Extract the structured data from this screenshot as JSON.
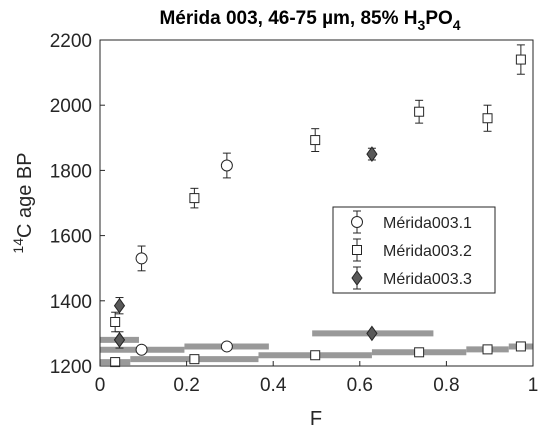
{
  "chart_data": {
    "type": "scatter",
    "title_main": "Mérida 003, 46-75 µm, 85% H",
    "title_sub1": "3",
    "title_mid": "PO",
    "title_sub2": "4",
    "xlabel": "F",
    "ylabel_sup": "14",
    "ylabel_main": "C age BP",
    "xlim": [
      0,
      1
    ],
    "ylim": [
      1200,
      2200
    ],
    "x_ticks": [
      0,
      0.2,
      0.4,
      0.6,
      0.8,
      1
    ],
    "x_tick_labels": [
      "0",
      "0.2",
      "0.4",
      "0.6",
      "0.8",
      "1"
    ],
    "y_ticks": [
      1200,
      1400,
      1600,
      1800,
      2000,
      2200
    ],
    "y_tick_labels": [
      "1200",
      "1400",
      "1600",
      "1800",
      "2000",
      "2200"
    ],
    "legend_position": "right-middle",
    "series": [
      {
        "name": "Mérida003.1",
        "marker": "circle",
        "fill": "#ffffff",
        "points": [
          {
            "x": 0.096,
            "y": 1530,
            "err": 38
          },
          {
            "x": 0.293,
            "y": 1815,
            "err": 38
          }
        ],
        "bars": [
          {
            "x": 0.096,
            "y": 1250,
            "xmin": 0.0,
            "xmax": 0.195
          },
          {
            "x": 0.293,
            "y": 1260,
            "xmin": 0.195,
            "xmax": 0.39
          }
        ]
      },
      {
        "name": "Mérida003.2",
        "marker": "square",
        "fill": "#ffffff",
        "points": [
          {
            "x": 0.035,
            "y": 1335,
            "err": 30
          },
          {
            "x": 0.218,
            "y": 1715,
            "err": 30
          },
          {
            "x": 0.497,
            "y": 1893,
            "err": 35
          },
          {
            "x": 0.737,
            "y": 1980,
            "err": 35
          },
          {
            "x": 0.895,
            "y": 1960,
            "err": 40
          },
          {
            "x": 0.972,
            "y": 2140,
            "err": 45
          }
        ],
        "bars": [
          {
            "x": 0.035,
            "y": 1212,
            "xmin": 0.0,
            "xmax": 0.07
          },
          {
            "x": 0.218,
            "y": 1221,
            "xmin": 0.07,
            "xmax": 0.366
          },
          {
            "x": 0.497,
            "y": 1233,
            "xmin": 0.366,
            "xmax": 0.628
          },
          {
            "x": 0.737,
            "y": 1242,
            "xmin": 0.628,
            "xmax": 0.846
          },
          {
            "x": 0.895,
            "y": 1251,
            "xmin": 0.846,
            "xmax": 0.944
          },
          {
            "x": 0.972,
            "y": 1260,
            "xmin": 0.944,
            "xmax": 1.0
          }
        ]
      },
      {
        "name": "Mérida003.3",
        "marker": "diamond",
        "fill": "#595959",
        "points": [
          {
            "x": 0.045,
            "y": 1385,
            "err": 25
          },
          {
            "x": 0.045,
            "y": 1280,
            "err": 25
          },
          {
            "x": 0.628,
            "y": 1850,
            "err": 18
          }
        ],
        "bars": [
          {
            "x": 0.045,
            "y": 1280,
            "xmin": 0.0,
            "xmax": 0.09
          },
          {
            "x": 0.628,
            "y": 1300,
            "xmin": 0.49,
            "xmax": 0.77
          }
        ]
      }
    ]
  },
  "colors": {
    "marker_edge": "#262626",
    "range_bar": "#999999",
    "axis": "#262626"
  }
}
